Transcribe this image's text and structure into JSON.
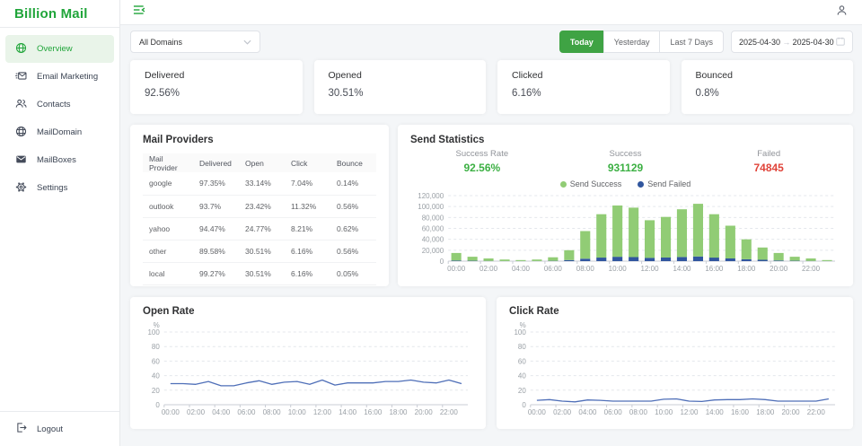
{
  "brand": {
    "name": "Billion Mail",
    "color": "#20a53a"
  },
  "sidebar": {
    "items": [
      {
        "label": "Overview",
        "icon": "globe-icon",
        "active": true
      },
      {
        "label": "Email Marketing",
        "icon": "campaign-icon",
        "active": false
      },
      {
        "label": "Contacts",
        "icon": "contacts-icon",
        "active": false
      },
      {
        "label": "MailDomain",
        "icon": "domain-globe-icon",
        "active": false
      },
      {
        "label": "MailBoxes",
        "icon": "mailbox-icon",
        "active": false
      },
      {
        "label": "Settings",
        "icon": "gear-icon",
        "active": false
      }
    ],
    "logout_label": "Logout"
  },
  "topbar": {
    "left_icon": "collapse-menu-icon",
    "right_icon": "user-icon"
  },
  "filters": {
    "domain_select_value": "All Domains",
    "range_buttons": [
      {
        "label": "Today",
        "active": true
      },
      {
        "label": "Yesterday",
        "active": false
      },
      {
        "label": "Last 7 Days",
        "active": false
      }
    ],
    "date_range": {
      "start": "2025-04-30",
      "end": "2025-04-30",
      "separator": "→"
    }
  },
  "stat_cards": [
    {
      "label": "Delivered",
      "value": "92.56%"
    },
    {
      "label": "Opened",
      "value": "30.51%"
    },
    {
      "label": "Clicked",
      "value": "6.16%"
    },
    {
      "label": "Bounced",
      "value": "0.8%"
    }
  ],
  "mail_providers": {
    "title": "Mail Providers",
    "columns": [
      "Mail Provider",
      "Delivered",
      "Open",
      "Click",
      "Bounce"
    ],
    "rows": [
      [
        "google",
        "97.35%",
        "33.14%",
        "7.04%",
        "0.14%"
      ],
      [
        "outlook",
        "93.7%",
        "23.42%",
        "11.32%",
        "0.56%"
      ],
      [
        "yahoo",
        "94.47%",
        "24.77%",
        "8.21%",
        "0.62%"
      ],
      [
        "other",
        "89.58%",
        "30.51%",
        "6.16%",
        "0.56%"
      ],
      [
        "local",
        "99.27%",
        "30.51%",
        "6.16%",
        "0.05%"
      ]
    ]
  },
  "send_statistics": {
    "summary": [
      {
        "label": "Success Rate",
        "value": "92.56%",
        "color": "#3cb043"
      },
      {
        "label": "Success",
        "value": "931129",
        "color": "#3cb043"
      },
      {
        "label": "Failed",
        "value": "74845",
        "color": "#e0443a"
      }
    ]
  },
  "chart_data": [
    {
      "id": "send_statistics",
      "type": "bar",
      "stacked": true,
      "title": "Send Statistics",
      "categories": [
        "00:00",
        "01:00",
        "02:00",
        "03:00",
        "04:00",
        "05:00",
        "06:00",
        "07:00",
        "08:00",
        "09:00",
        "10:00",
        "11:00",
        "12:00",
        "13:00",
        "14:00",
        "15:00",
        "16:00",
        "17:00",
        "18:00",
        "19:00",
        "20:00",
        "21:00",
        "22:00",
        "23:00"
      ],
      "series": [
        {
          "name": "Send Success",
          "color": "#91cc75",
          "values": [
            14000,
            7400,
            4600,
            2800,
            1800,
            2800,
            6500,
            18000,
            50500,
            79500,
            94000,
            90500,
            69000,
            74500,
            87500,
            96500,
            79500,
            60000,
            36500,
            22500,
            13800,
            7400,
            4600,
            1800
          ]
        },
        {
          "name": "Send Failed",
          "color": "#31569e",
          "values": [
            1000,
            600,
            400,
            200,
            200,
            200,
            500,
            2000,
            4500,
            6500,
            8000,
            7500,
            6000,
            6500,
            7500,
            8500,
            6500,
            5000,
            3500,
            2500,
            1200,
            600,
            400,
            200
          ]
        }
      ],
      "ylim": [
        0,
        120000
      ],
      "yticks": [
        0,
        20000,
        40000,
        60000,
        80000,
        100000,
        120000
      ],
      "xtick_every": 2,
      "grid": true,
      "legend_position": "top-center"
    },
    {
      "id": "open_rate",
      "type": "line",
      "title": "Open Rate",
      "unit": "%",
      "color": "#4f6fb8",
      "categories": [
        "00:00",
        "01:00",
        "02:00",
        "03:00",
        "04:00",
        "05:00",
        "06:00",
        "07:00",
        "08:00",
        "09:00",
        "10:00",
        "11:00",
        "12:00",
        "13:00",
        "14:00",
        "15:00",
        "16:00",
        "17:00",
        "18:00",
        "19:00",
        "20:00",
        "21:00",
        "22:00",
        "23:00"
      ],
      "values": [
        29,
        29,
        28,
        32,
        26,
        26,
        30,
        33,
        28,
        31,
        32,
        28,
        34,
        27,
        30,
        30,
        30,
        32,
        32,
        34,
        31,
        30,
        34,
        29
      ],
      "ylim": [
        0,
        100
      ],
      "yticks": [
        0,
        20,
        40,
        60,
        80,
        100
      ],
      "xtick_every": 2,
      "grid": true,
      "legend_position": "none"
    },
    {
      "id": "click_rate",
      "type": "line",
      "title": "Click Rate",
      "unit": "%",
      "color": "#4f6fb8",
      "categories": [
        "00:00",
        "01:00",
        "02:00",
        "03:00",
        "04:00",
        "05:00",
        "06:00",
        "07:00",
        "08:00",
        "09:00",
        "10:00",
        "11:00",
        "12:00",
        "13:00",
        "14:00",
        "15:00",
        "16:00",
        "17:00",
        "18:00",
        "19:00",
        "20:00",
        "21:00",
        "22:00",
        "23:00"
      ],
      "values": [
        6,
        7,
        5,
        4,
        6.5,
        6,
        5,
        5,
        5,
        5,
        7.5,
        8,
        5,
        4.5,
        6.5,
        7,
        7,
        8,
        7,
        5,
        5,
        5,
        5,
        8
      ],
      "ylim": [
        0,
        100
      ],
      "yticks": [
        0,
        20,
        40,
        60,
        80,
        100
      ],
      "xtick_every": 2,
      "grid": true,
      "legend_position": "none"
    }
  ]
}
